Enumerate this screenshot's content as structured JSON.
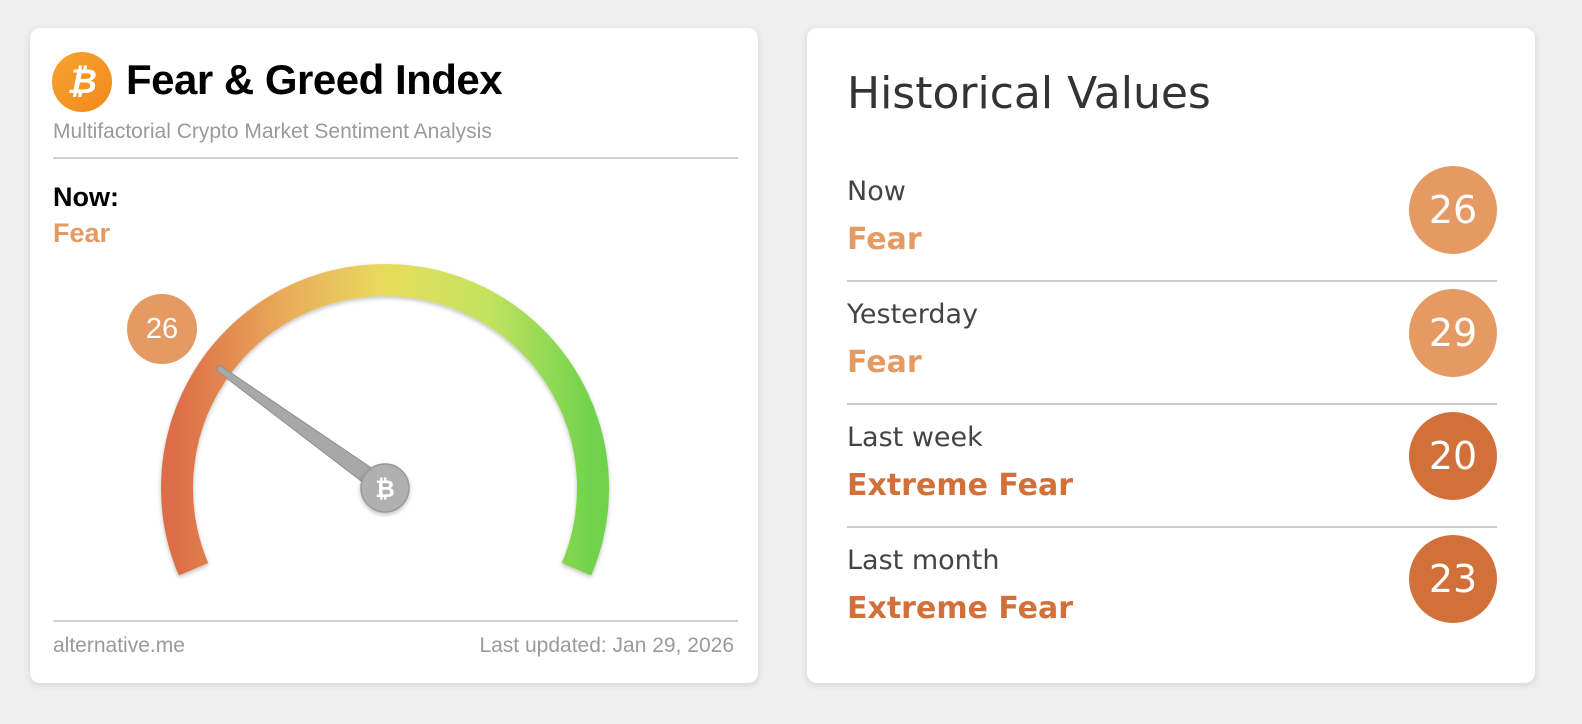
{
  "colors": {
    "fear": "#e49a62",
    "extreme_fear": "#d2703a",
    "background": "#efefef"
  },
  "index_card": {
    "logo_icon": "bitcoin-icon",
    "title": "Fear & Greed Index",
    "subtitle": "Multifactorial Crypto Market Sentiment Analysis",
    "now_label": "Now:",
    "now_status": "Fear",
    "gauge": {
      "value": 26,
      "min": 0,
      "max": 100,
      "colors": [
        "#dc6e47",
        "#e9a95a",
        "#e8dc5c",
        "#c2e35f",
        "#6fd24c"
      ],
      "needle_icon": "bitcoin-icon"
    },
    "footer_source": "alternative.me",
    "footer_updated": "Last updated: Jan 29, 2026"
  },
  "history": {
    "title": "Historical Values",
    "rows": [
      {
        "label": "Now",
        "status": "Fear",
        "value": "26",
        "level": "fear"
      },
      {
        "label": "Yesterday",
        "status": "Fear",
        "value": "29",
        "level": "fear"
      },
      {
        "label": "Last week",
        "status": "Extreme Fear",
        "value": "20",
        "level": "extreme_fear"
      },
      {
        "label": "Last month",
        "status": "Extreme Fear",
        "value": "23",
        "level": "extreme_fear"
      }
    ]
  }
}
